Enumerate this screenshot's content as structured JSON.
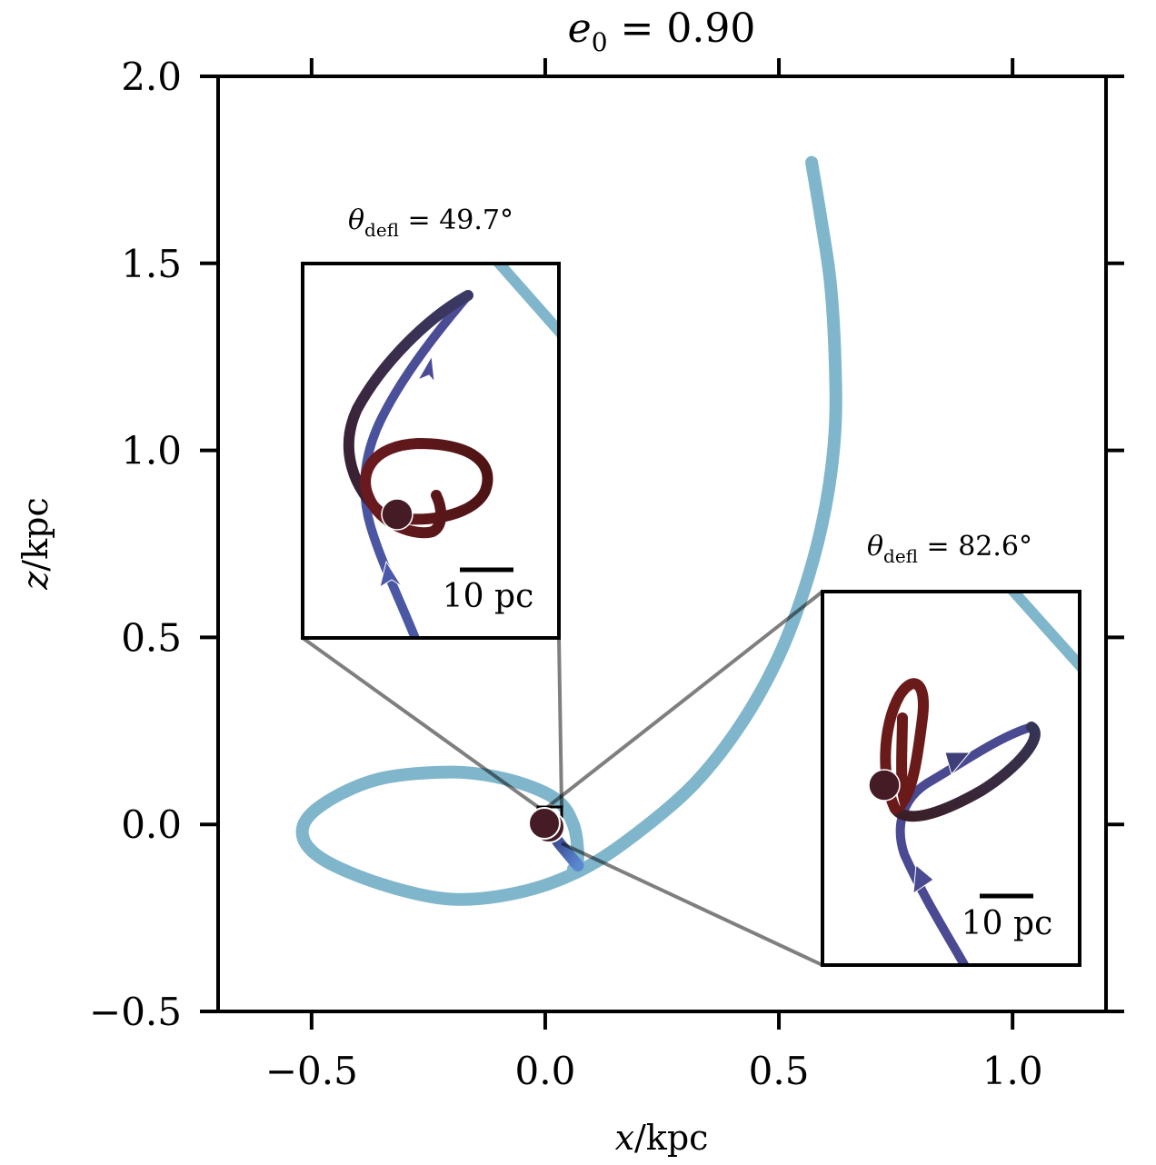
{
  "chart_data": {
    "type": "line",
    "title": "e_0 = 0.90",
    "title_parts": {
      "symbol": "e",
      "subscript": "0",
      "rest": " = 0.90"
    },
    "xlabel": "x/kpc",
    "ylabel": "z/kpc",
    "xlim": [
      -0.7,
      1.2
    ],
    "ylim": [
      -0.5,
      2.0
    ],
    "x_ticks": [
      -0.5,
      0.0,
      0.5,
      1.0
    ],
    "x_tick_labels": [
      "−0.5",
      "0.0",
      "0.5",
      "1.0"
    ],
    "y_ticks": [
      -0.5,
      0.0,
      0.5,
      1.0,
      1.5,
      2.0
    ],
    "y_tick_labels": [
      "−0.5",
      "0.0",
      "0.5",
      "1.0",
      "1.5",
      "2.0"
    ],
    "grid": false,
    "colors": {
      "main_orbit": "#80b6cb",
      "incoming": "#4a5aa8",
      "mid": "#3a2a4a",
      "late": "#6b1a1a",
      "end": "#7a2a34",
      "marker": "#451b26",
      "connector": "#808080"
    },
    "series": [
      {
        "name": "main orbit",
        "points": [
          [
            0.57,
            1.77
          ],
          [
            0.59,
            1.62
          ],
          [
            0.61,
            1.45
          ],
          [
            0.62,
            1.25
          ],
          [
            0.62,
            1.05
          ],
          [
            0.6,
            0.85
          ],
          [
            0.56,
            0.65
          ],
          [
            0.5,
            0.45
          ],
          [
            0.42,
            0.27
          ],
          [
            0.32,
            0.11
          ],
          [
            0.2,
            -0.02
          ],
          [
            0.08,
            -0.12
          ],
          [
            -0.05,
            -0.18
          ],
          [
            -0.2,
            -0.2
          ],
          [
            -0.35,
            -0.16
          ],
          [
            -0.48,
            -0.09
          ],
          [
            -0.52,
            -0.02
          ],
          [
            -0.48,
            0.05
          ],
          [
            -0.36,
            0.12
          ],
          [
            -0.2,
            0.14
          ],
          [
            -0.08,
            0.12
          ],
          [
            0.02,
            0.07
          ],
          [
            0.06,
            0.0
          ],
          [
            0.07,
            -0.09
          ],
          [
            0.06,
            -0.12
          ]
        ]
      },
      {
        "name": "central zoom segment",
        "points": [
          [
            0.0,
            0.0
          ],
          [
            0.03,
            -0.05
          ],
          [
            0.07,
            -0.11
          ]
        ]
      }
    ],
    "markers": [
      {
        "name": "current position",
        "x": 0.0,
        "z": 0.0
      }
    ],
    "insets": [
      {
        "name": "inset-left",
        "title": "θ_defl = 49.7°",
        "title_parts": {
          "symbol": "θ",
          "subscript": "defl",
          "rest": " = 49.7°"
        },
        "scale_bar": "10 pc",
        "deflection_deg": 49.7,
        "extent_kpc": {
          "x": [
            -0.52,
            0.03
          ],
          "z": [
            0.5,
            1.5
          ]
        }
      },
      {
        "name": "inset-right",
        "title": "θ_defl = 82.6°",
        "title_parts": {
          "symbol": "θ",
          "subscript": "defl",
          "rest": " = 82.6°"
        },
        "scale_bar": "10 pc",
        "deflection_deg": 82.6,
        "extent_kpc": {
          "x": [
            0.59,
            1.14
          ],
          "z": [
            -0.37,
            0.63
          ]
        }
      }
    ]
  }
}
